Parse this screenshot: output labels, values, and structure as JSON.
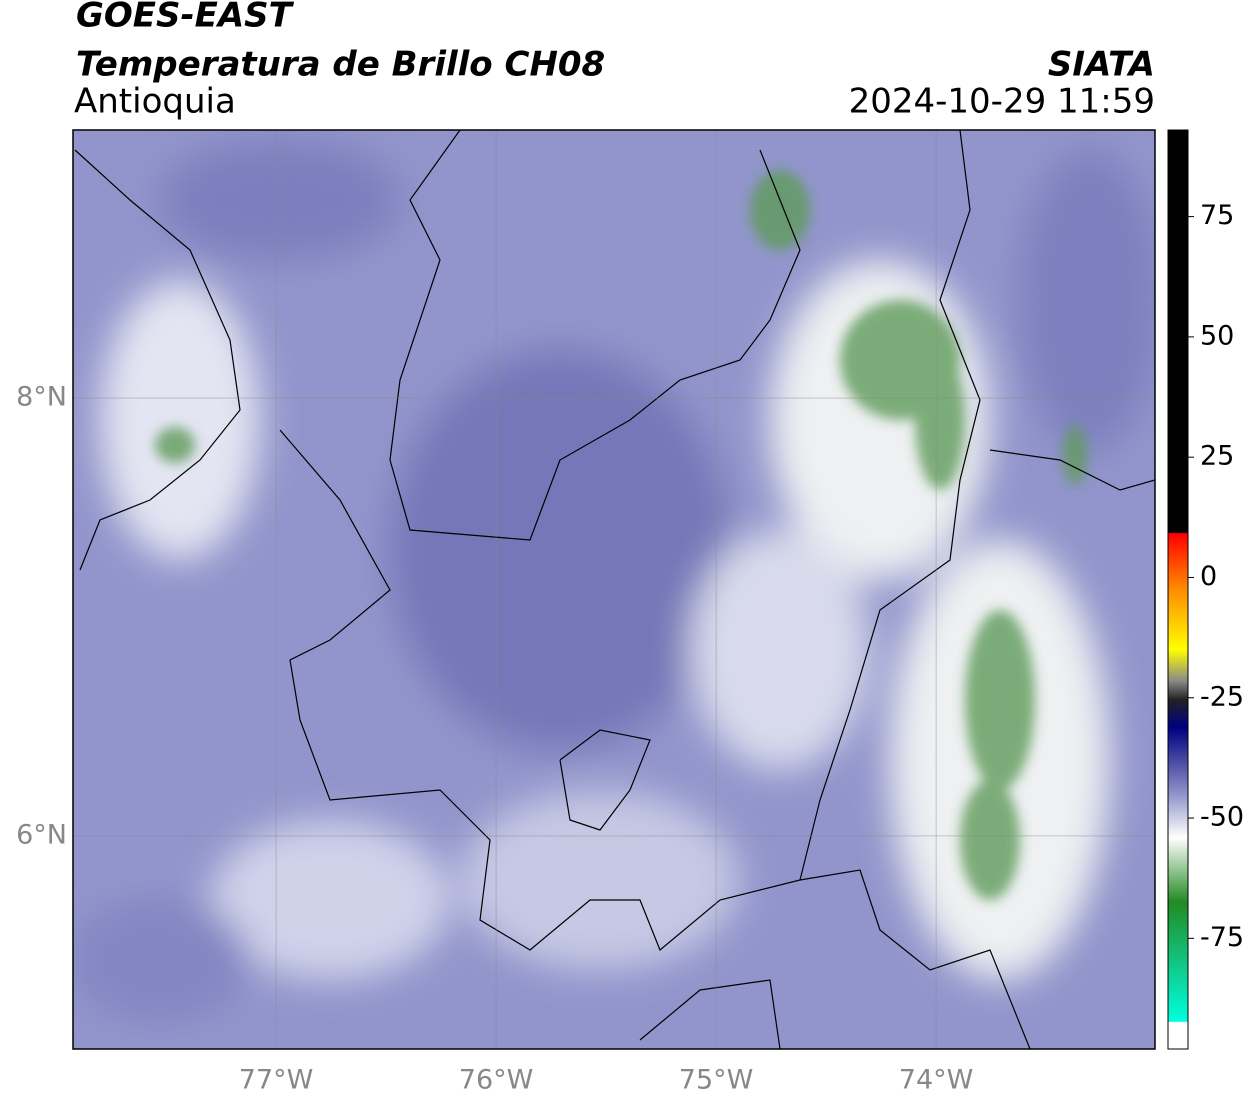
{
  "header": {
    "title": "GOES-EAST",
    "subtitle": "Temperatura de Brillo CH08",
    "region": "Antioquia",
    "source": "SIATA",
    "datetime": "2024-10-29 11:59"
  },
  "map": {
    "xlim": [
      -77.923,
      -73.005
    ],
    "ylim": [
      5.027,
      9.224
    ],
    "xticks": [
      {
        "value": -77,
        "label": "77°W"
      },
      {
        "value": -76,
        "label": "76°W"
      },
      {
        "value": -75,
        "label": "75°W"
      },
      {
        "value": -74,
        "label": "74°W"
      }
    ],
    "yticks": [
      {
        "value": 8,
        "label": "8°N"
      },
      {
        "value": 6,
        "label": "6°N"
      }
    ]
  },
  "colorbar": {
    "lim": [
      -98,
      93
    ],
    "ticks": [
      75,
      50,
      25,
      0,
      -25,
      -50,
      -75
    ]
  }
}
